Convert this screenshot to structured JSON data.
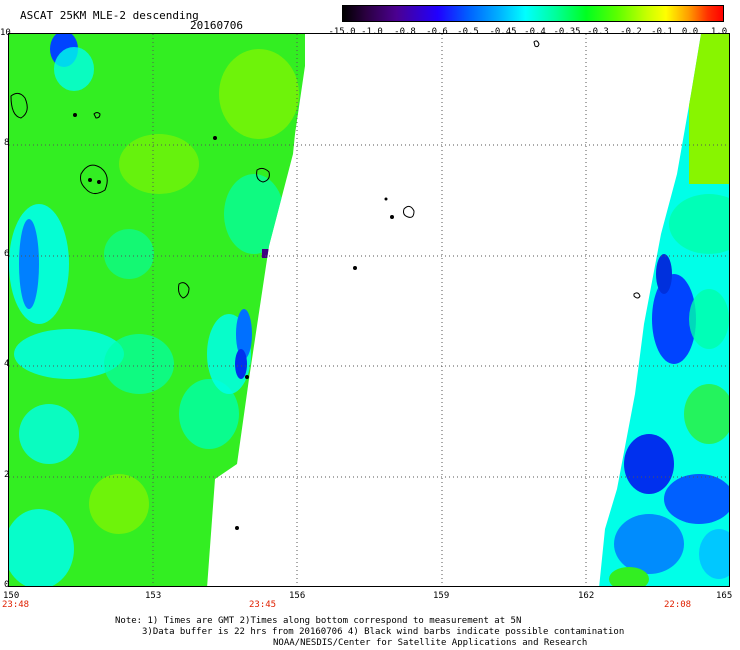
{
  "header": {
    "title": "ASCAT 25KM MLE-2 descending",
    "date": "20160706"
  },
  "colorbar": {
    "ticks": [
      "-15.0",
      "-1.0",
      "-0.8",
      "-0.6",
      "-0.5",
      "-0.45",
      "-0.4",
      "-0.35",
      "-0.3",
      "-0.2",
      "-0.1",
      "0.0",
      "1.0"
    ]
  },
  "map": {
    "x_ticks": [
      "150",
      "153",
      "156",
      "159",
      "162",
      "165"
    ],
    "y_ticks": [
      "0",
      "2",
      "4",
      "6",
      "8",
      "10"
    ],
    "time_labels": [
      "23:48",
      "23:45",
      "22:08"
    ],
    "colors": {
      "green": "#33ee22",
      "cyan": "#00ffe8",
      "blue": "#0044ff",
      "lime": "#88f500",
      "timestamp": "#e02000"
    }
  },
  "footer": {
    "line1": "Note: 1) Times are GMT 2)Times along bottom correspond to measurement at 5N",
    "line2": "3)Data buffer is 22 hrs from 20160706 4) Black wind barbs indicate possible contamination",
    "line3": "NOAA/NESDIS/Center for Satellite Applications and Research"
  }
}
